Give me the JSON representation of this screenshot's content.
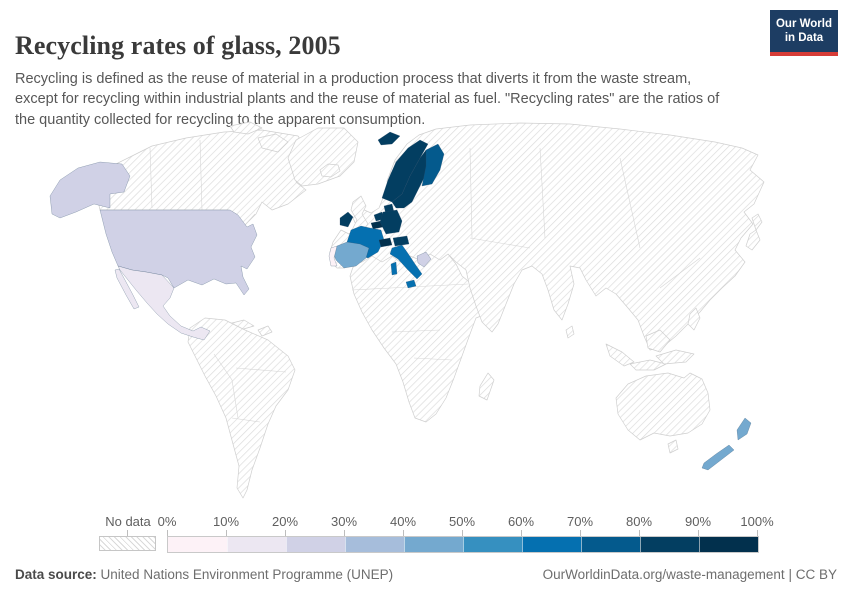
{
  "header": {
    "title": "Recycling rates of glass, 2005",
    "subtitle_lines": [
      "Recycling is defined as the reuse of material in a production process that diverts it from the waste stream,",
      "except for recycling within industrial plants and the reuse of material as fuel. \"Recycling rates\" are the ratios of",
      "the quantity collected for recycling to the apparent consumption."
    ],
    "logo": {
      "line1": "Our World",
      "line2": "in Data",
      "bg_color": "#1d3d63",
      "accent_color": "#d73c37"
    }
  },
  "chart_data": {
    "type": "choropleth_map",
    "title": "Recycling rates of glass, 2005",
    "unit": "%",
    "legend": {
      "no_data_label": "No data",
      "tick_labels": [
        "0%",
        "10%",
        "20%",
        "30%",
        "40%",
        "50%",
        "60%",
        "70%",
        "80%",
        "90%",
        "100%"
      ],
      "bins": [
        {
          "range": "0-10%",
          "color": "#fdf2f7"
        },
        {
          "range": "10-20%",
          "color": "#ece7f2"
        },
        {
          "range": "20-30%",
          "color": "#d0d1e6"
        },
        {
          "range": "30-40%",
          "color": "#a6bddb"
        },
        {
          "range": "40-50%",
          "color": "#74a9cf"
        },
        {
          "range": "50-60%",
          "color": "#3690c0"
        },
        {
          "range": "60-70%",
          "color": "#0570b0"
        },
        {
          "range": "70-80%",
          "color": "#045a8d"
        },
        {
          "range": "80-90%",
          "color": "#033e61"
        },
        {
          "range": "90-100%",
          "color": "#02304d"
        }
      ],
      "no_data_style": "diagonal-hatch"
    },
    "countries": [
      {
        "name": "United States",
        "bin": 2,
        "range": "20-30%"
      },
      {
        "name": "Mexico",
        "bin": 1,
        "range": "10-20%"
      },
      {
        "name": "Portugal",
        "bin": 0,
        "range": "0-10%"
      },
      {
        "name": "Spain",
        "bin": 4,
        "range": "40-50%"
      },
      {
        "name": "France",
        "bin": 6,
        "range": "60-70%"
      },
      {
        "name": "Ireland",
        "bin": 8,
        "range": "80-90%"
      },
      {
        "name": "Netherlands",
        "bin": 8,
        "range": "80-90%"
      },
      {
        "name": "Belgium",
        "bin": 9,
        "range": "90-100%"
      },
      {
        "name": "Germany",
        "bin": 8,
        "range": "80-90%"
      },
      {
        "name": "Switzerland",
        "bin": 9,
        "range": "90-100%"
      },
      {
        "name": "Austria",
        "bin": 8,
        "range": "80-90%"
      },
      {
        "name": "Italy",
        "bin": 6,
        "range": "60-70%"
      },
      {
        "name": "Greece",
        "bin": 2,
        "range": "20-30%"
      },
      {
        "name": "Denmark",
        "bin": 8,
        "range": "80-90%"
      },
      {
        "name": "Norway",
        "bin": 8,
        "range": "80-90%"
      },
      {
        "name": "Sweden",
        "bin": 8,
        "range": "80-90%"
      },
      {
        "name": "Finland",
        "bin": 7,
        "range": "70-80%"
      },
      {
        "name": "New Zealand",
        "bin": 4,
        "range": "40-50%"
      }
    ],
    "no_data_regions": "All other countries (Canada, Greenland, South America, Africa, Eastern Europe, UK, Iceland, Asia, Australia, etc.)"
  },
  "footer": {
    "source_label": "Data source:",
    "source_value": "United Nations Environment Programme (UNEP)",
    "url_label": "OurWorldinData.org/waste-management",
    "separator": "|",
    "license": "CC BY"
  }
}
